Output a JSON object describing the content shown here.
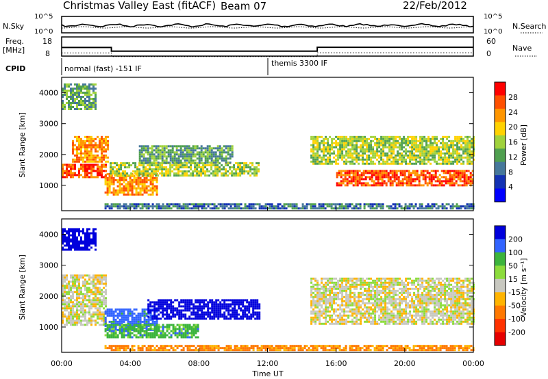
{
  "header": {
    "title": "Christmas Valley East (fitACF)",
    "beam": "Beam 07",
    "date": "22/Feb/2012"
  },
  "status_panels": {
    "nsky_label": "N.Sky",
    "nsearch_label": "N.Search",
    "nsky_ticks": [
      "10^5",
      "10^0"
    ],
    "freq_label": "Freq.",
    "freq_unit": "[MHz]",
    "freq_ticks": [
      "18",
      "8"
    ],
    "nave_label": "Nave",
    "nave_ticks": [
      "60",
      "0"
    ],
    "cpid_label": "CPID",
    "cpid_modes": [
      {
        "label": "normal (fast) -151 IF",
        "start": 0,
        "end": 12
      },
      {
        "label": "themis 3300 IF",
        "start": 12,
        "end": 24
      }
    ],
    "freq_steps": [
      {
        "t0": 0,
        "t1": 2.9,
        "f": 12.5
      },
      {
        "t0": 2.9,
        "t1": 14.9,
        "f": 10.6
      },
      {
        "t0": 14.9,
        "t1": 24,
        "f": 12.6
      }
    ]
  },
  "chart_data": [
    {
      "type": "heatmap",
      "name": "power",
      "xlabel": "",
      "ylabel": "Slant Range [km]",
      "xlim": [
        0,
        24
      ],
      "ylim": [
        180,
        4500
      ],
      "x_ticks": [
        0,
        4,
        8,
        12,
        16,
        20,
        24
      ],
      "y_ticks": [
        1000,
        2000,
        3000,
        4000
      ],
      "colorbar_label": "Power [dB]",
      "colorbar_ticks": [
        "28",
        "24",
        "20",
        "16",
        "12",
        "8",
        "4"
      ],
      "colorbar_colors": [
        "#ff0000",
        "#ff5000",
        "#ff9600",
        "#ffd200",
        "#a0d23c",
        "#50a050",
        "#46789b",
        "#1432b4",
        "#0000ff"
      ],
      "features": [
        {
          "t0": 0.0,
          "t1": 2.6,
          "r0": 1250,
          "r1": 1700,
          "level": 7
        },
        {
          "t0": 0.6,
          "t1": 2.7,
          "r0": 1750,
          "r1": 2600,
          "level": 6
        },
        {
          "t0": 2.5,
          "t1": 5.5,
          "r0": 700,
          "r1": 1400,
          "level": 6
        },
        {
          "t0": 2.8,
          "t1": 11.5,
          "r0": 1300,
          "r1": 1750,
          "level": 4
        },
        {
          "t0": 4.5,
          "t1": 10.0,
          "r0": 1750,
          "r1": 2300,
          "level": 3
        },
        {
          "t0": 14.5,
          "t1": 24,
          "r0": 1700,
          "r1": 2600,
          "level": 4
        },
        {
          "t0": 16.0,
          "t1": 24,
          "r0": 1000,
          "r1": 1500,
          "level": 7
        },
        {
          "t0": 2.5,
          "t1": 24,
          "r0": 250,
          "r1": 420,
          "level": 2
        },
        {
          "t0": 0.0,
          "t1": 2.0,
          "r0": 3500,
          "r1": 4300,
          "level": 3
        }
      ]
    },
    {
      "type": "heatmap",
      "name": "velocity",
      "xlabel": "Time UT",
      "ylabel": "Slant Range [km]",
      "xlim": [
        0,
        24
      ],
      "ylim": [
        180,
        4500
      ],
      "x_ticks": [
        0,
        4,
        8,
        12,
        16,
        20,
        24
      ],
      "x_tick_labels": [
        "00:00",
        "04:00",
        "08:00",
        "12:00",
        "16:00",
        "20:00",
        "00:00"
      ],
      "y_ticks": [
        1000,
        2000,
        3000,
        4000
      ],
      "colorbar_label": "Velocity [m s⁻¹]",
      "colorbar_ticks": [
        "200",
        "100",
        "50",
        "15",
        "-15",
        "-50",
        "-100",
        "-200"
      ],
      "colorbar_colors": [
        "#0000dc",
        "#3264ff",
        "#3cb43c",
        "#8cdc3c",
        "#c8c8c0",
        "#ffb400",
        "#ff7800",
        "#ff3200",
        "#e60000"
      ],
      "features": [
        {
          "t0": 0.0,
          "t1": 2.6,
          "r0": 1100,
          "r1": 2700,
          "vel": 0
        },
        {
          "t0": 2.5,
          "t1": 5.5,
          "r0": 900,
          "r1": 1600,
          "vel": 100
        },
        {
          "t0": 5.0,
          "t1": 11.5,
          "r0": 1300,
          "r1": 1900,
          "vel": 200
        },
        {
          "t0": 2.5,
          "t1": 8.0,
          "r0": 700,
          "r1": 1100,
          "vel": 50
        },
        {
          "t0": 14.5,
          "t1": 24,
          "r0": 1100,
          "r1": 2600,
          "vel": 0
        },
        {
          "t0": 2.5,
          "t1": 24,
          "r0": 250,
          "r1": 420,
          "vel": -60
        },
        {
          "t0": 0.0,
          "t1": 2.0,
          "r0": 3500,
          "r1": 4200,
          "vel": 200
        }
      ]
    }
  ]
}
